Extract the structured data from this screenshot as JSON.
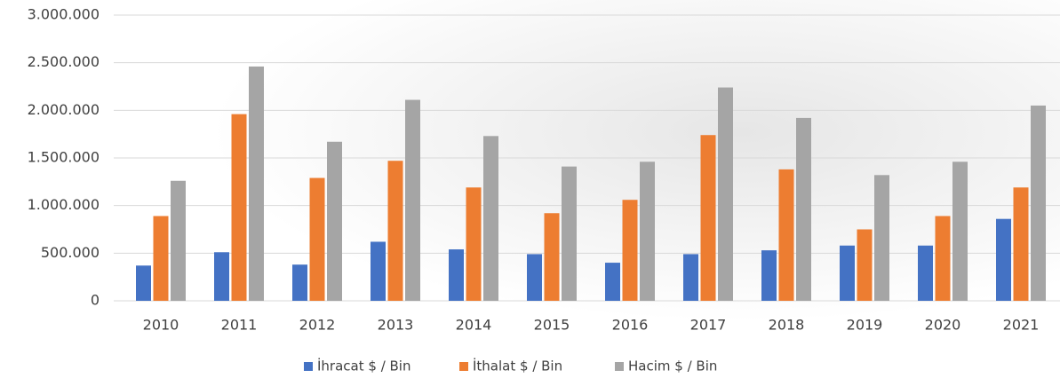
{
  "chart_data": {
    "type": "bar",
    "categories": [
      "2010",
      "2011",
      "2012",
      "2013",
      "2014",
      "2015",
      "2016",
      "2017",
      "2018",
      "2019",
      "2020",
      "2021"
    ],
    "series": [
      {
        "name": "İhracat $ / Bin",
        "color": "#4472c4",
        "values": [
          370000,
          510000,
          380000,
          620000,
          540000,
          490000,
          400000,
          490000,
          530000,
          580000,
          580000,
          860000
        ]
      },
      {
        "name": "İthalat $ / Bin",
        "color": "#ed7d31",
        "values": [
          890000,
          1960000,
          1290000,
          1470000,
          1190000,
          920000,
          1060000,
          1740000,
          1380000,
          750000,
          890000,
          1190000
        ]
      },
      {
        "name": "Hacim $ / Bin",
        "color": "#a5a5a5",
        "values": [
          1260000,
          2460000,
          1670000,
          2110000,
          1730000,
          1410000,
          1460000,
          2240000,
          1920000,
          1320000,
          1460000,
          2050000
        ]
      }
    ],
    "ylim": [
      0,
      3000000
    ],
    "yticks": [
      0,
      {
        "value": 500000,
        "label": "500.000"
      },
      {
        "value": 1000000,
        "label": "1.000.000"
      },
      {
        "value": 1500000,
        "label": "1.500.000"
      },
      {
        "value": 2000000,
        "label": "2.000.000"
      },
      {
        "value": 2500000,
        "label": "2.500.000"
      },
      {
        "value": 3000000,
        "label": "3.000.000"
      }
    ],
    "grid": true,
    "legend": "bottom"
  }
}
